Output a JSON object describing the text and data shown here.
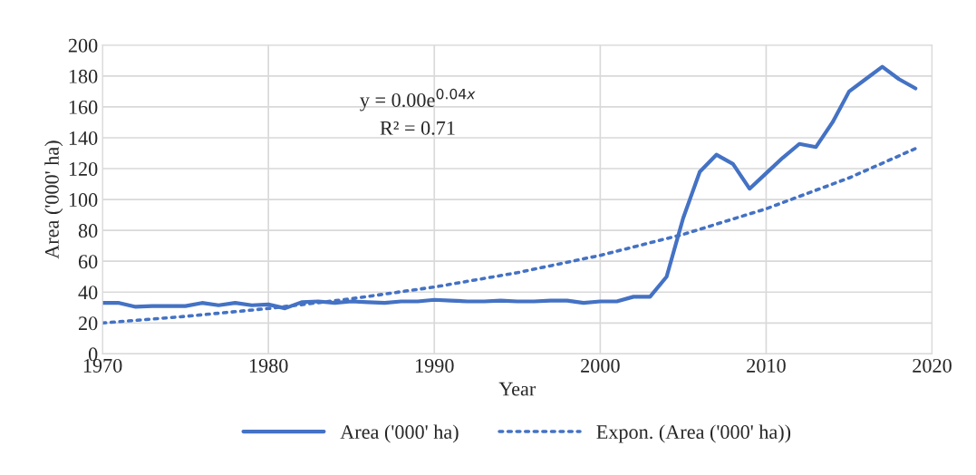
{
  "chart_data": {
    "type": "line",
    "xlabel": "Year",
    "ylabel": "Area ('000' ha)",
    "annotations": [
      "y = 0.00e$^{0.04x}$",
      "R² = 0.71"
    ],
    "series": [
      {
        "name": "Area ('000' ha)",
        "color": "#4472c4",
        "line_style": "solid",
        "x": [
          1970,
          1971,
          1972,
          1973,
          1974,
          1975,
          1976,
          1977,
          1978,
          1979,
          1980,
          1981,
          1982,
          1983,
          1984,
          1985,
          1986,
          1987,
          1988,
          1989,
          1990,
          1991,
          1992,
          1993,
          1994,
          1995,
          1996,
          1997,
          1998,
          1999,
          2000,
          2001,
          2002,
          2003,
          2004,
          2005,
          2006,
          2007,
          2008,
          2009,
          2010,
          2011,
          2012,
          2013,
          2014,
          2015,
          2016,
          2017,
          2018,
          2019
        ],
        "values": [
          33,
          33,
          30.5,
          31,
          31,
          31,
          33,
          31.5,
          33,
          31.5,
          32,
          29.5,
          33.5,
          34,
          33,
          34,
          33.5,
          33,
          34,
          34,
          35,
          34.5,
          34,
          34,
          34.5,
          34,
          34,
          34.5,
          34.5,
          33,
          34,
          34,
          37,
          37,
          50,
          88,
          118,
          129,
          123,
          107,
          117,
          127,
          136,
          134,
          150,
          170,
          178,
          186,
          178,
          172
        ]
      },
      {
        "name": "Expon. (Area ('000' ha))",
        "color": "#4472c4",
        "line_style": "dotted",
        "x": [
          1970,
          1975,
          1980,
          1985,
          1990,
          1995,
          2000,
          2005,
          2010,
          2015,
          2019
        ],
        "values": [
          20,
          24.3,
          29.4,
          35.7,
          43.3,
          52.6,
          63.8,
          77.4,
          94,
          114,
          133
        ]
      }
    ],
    "xlim": [
      1970,
      2020
    ],
    "xticks": [
      1970,
      1980,
      1990,
      2000,
      2010,
      2020
    ],
    "ylim": [
      0,
      200
    ],
    "yticks": [
      0,
      20,
      40,
      60,
      80,
      100,
      120,
      140,
      160,
      180,
      200
    ],
    "grid": true,
    "legend": "bottom",
    "marker": "none"
  }
}
